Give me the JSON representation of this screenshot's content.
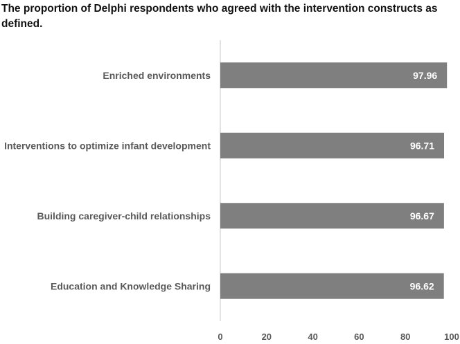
{
  "chart_data": {
    "type": "bar",
    "orientation": "horizontal",
    "title": "The proportion of Delphi respondents who agreed with the intervention constructs as defined.",
    "categories": [
      "Enriched environments",
      "Interventions to optimize infant development",
      "Building caregiver-child relationships",
      "Education and Knowledge Sharing"
    ],
    "values": [
      97.96,
      96.71,
      96.67,
      96.62
    ],
    "value_labels": [
      "97.96",
      "96.71",
      "96.67",
      "96.62"
    ],
    "xlim": [
      0,
      100
    ],
    "xticks": [
      0,
      20,
      40,
      60,
      80,
      100
    ],
    "xlabel": "",
    "ylabel": "",
    "grid": false,
    "legend": "none",
    "bar_color": "#7f7f7f",
    "axis_color": "#d9d9d9"
  }
}
